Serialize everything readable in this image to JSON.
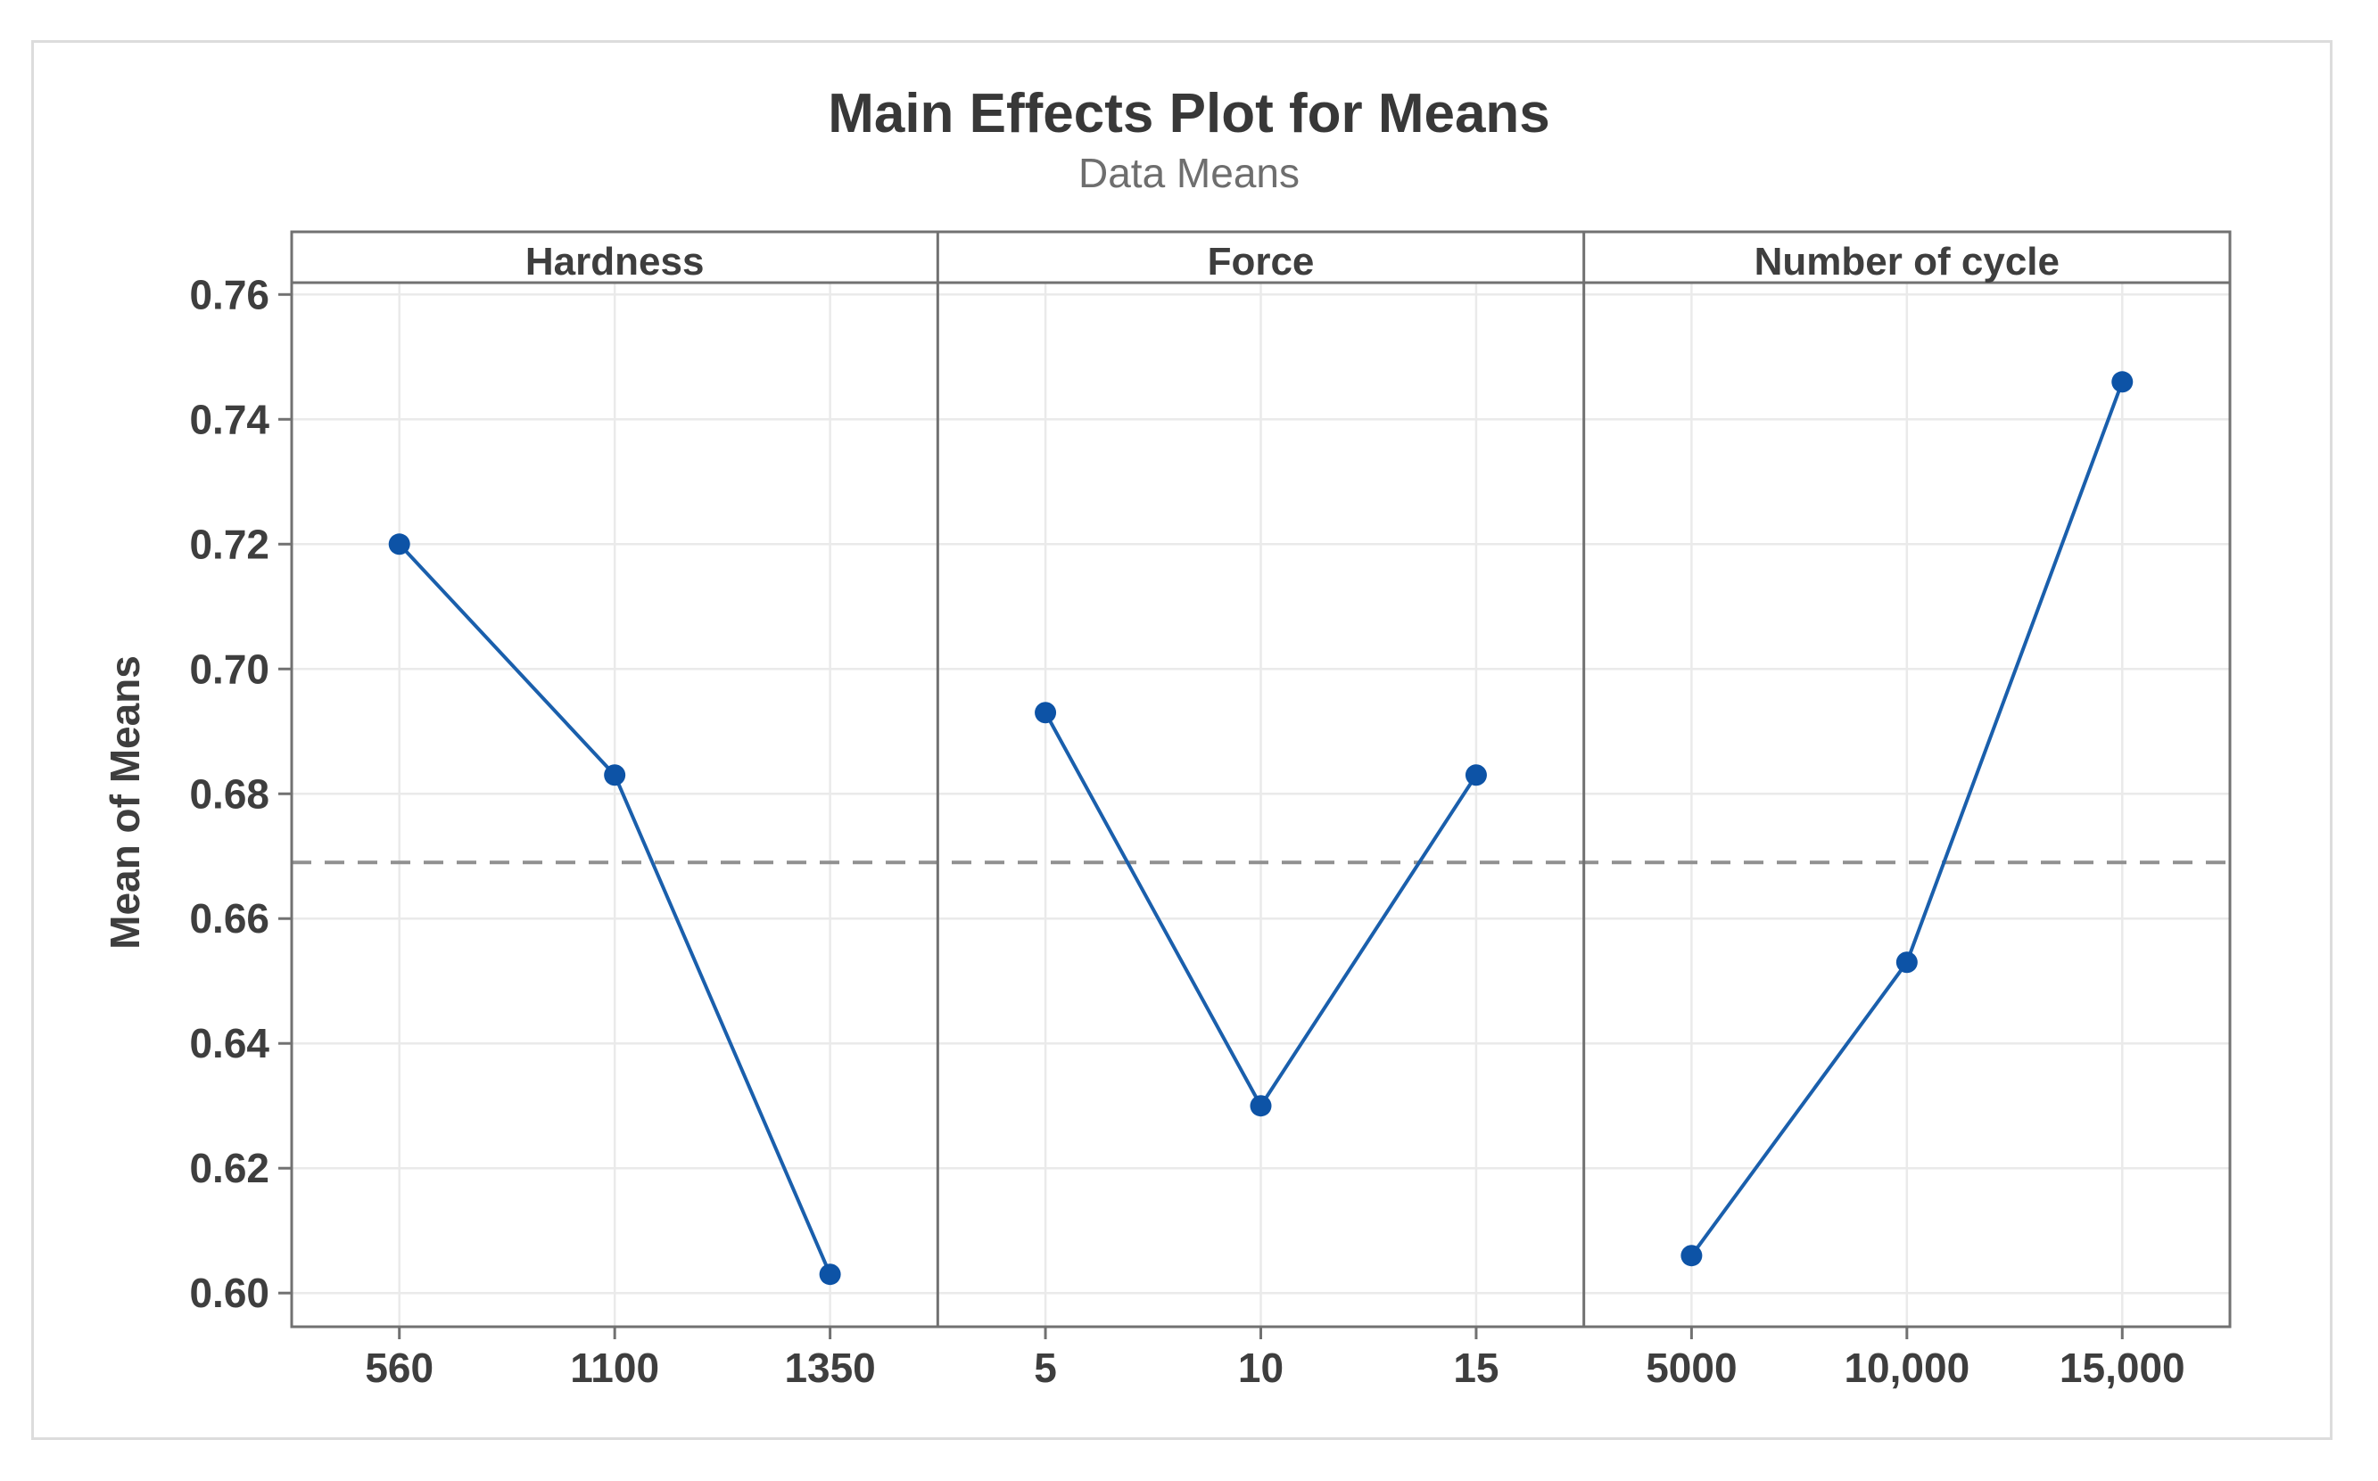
{
  "figure": {
    "title": "Main Effects Plot for Means",
    "subtitle": "Data Means",
    "ylabel": "Mean of Means"
  },
  "chart_data": {
    "type": "line",
    "title": "Main Effects Plot for Means",
    "subtitle": "Data Means",
    "ylabel": "Mean of Means",
    "ylim": [
      0.5946,
      0.7619
    ],
    "yticks": [
      0.6,
      0.62,
      0.64,
      0.66,
      0.68,
      0.7,
      0.72,
      0.74,
      0.76
    ],
    "ytick_labels": [
      "0.60",
      "0.62",
      "0.64",
      "0.66",
      "0.68",
      "0.70",
      "0.72",
      "0.74",
      "0.76"
    ],
    "grid": true,
    "legend": "none",
    "grand_mean_line": 0.669,
    "panels": [
      {
        "header": "Hardness",
        "categories": [
          "560",
          "1100",
          "1350"
        ],
        "values": [
          0.72,
          0.683,
          0.603
        ]
      },
      {
        "header": "Force",
        "categories": [
          "5",
          "10",
          "15"
        ],
        "values": [
          0.693,
          0.63,
          0.683
        ]
      },
      {
        "header": "Number of cycle",
        "categories": [
          "5000",
          "10,000",
          "15,000"
        ],
        "values": [
          0.606,
          0.653,
          0.746
        ]
      }
    ],
    "colors": {
      "marker": "#0D53A6",
      "line": "#1A5FAC",
      "mean_line": "#909090",
      "frame": "#717171",
      "gridline": "#EAEAEA",
      "title_text": "#383838",
      "subtitle_text": "#6E6E6E",
      "tick_text": "#3E3E3E",
      "outer_border": "#DCDCDC"
    }
  }
}
